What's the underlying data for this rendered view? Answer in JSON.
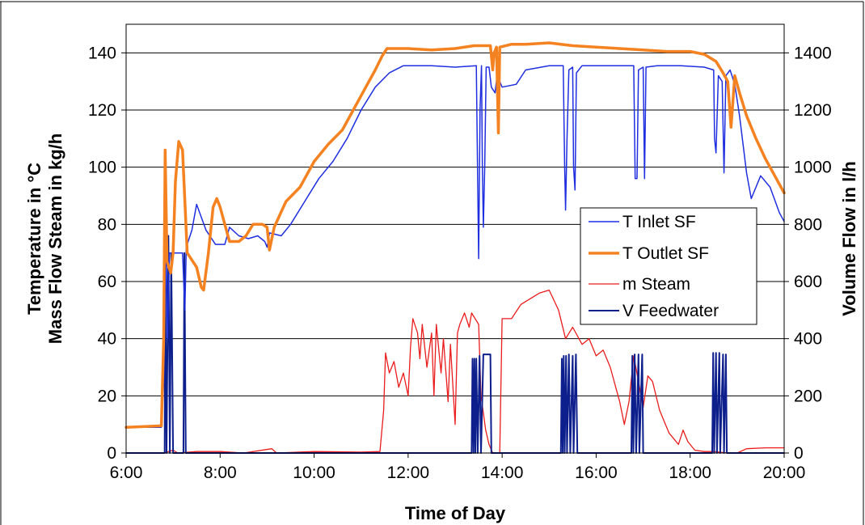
{
  "chart_data": {
    "type": "line",
    "xlabel": "Time of Day",
    "ylabel_left_line1": "Temperature in °C",
    "ylabel_left_line2": "Mass Flow Steam in kg/h",
    "ylabel_right": "Volume Flow in l/h",
    "x_unit": "hours",
    "xlim": [
      6,
      20
    ],
    "x_ticks": [
      6,
      8,
      10,
      12,
      14,
      16,
      18,
      20
    ],
    "x_tick_labels": [
      "6:00",
      "8:00",
      "10:00",
      "12:00",
      "14:00",
      "16:00",
      "18:00",
      "20:00"
    ],
    "ylim_left": [
      0,
      150
    ],
    "y_ticks_left": [
      0,
      20,
      40,
      60,
      80,
      100,
      120,
      140
    ],
    "y_tick_labels_left": [
      "0",
      "20",
      "40",
      "60",
      "80",
      "100",
      "120",
      "140"
    ],
    "ylim_right": [
      0,
      1500
    ],
    "y_ticks_right": [
      0,
      200,
      400,
      600,
      800,
      1000,
      1200,
      1400
    ],
    "y_tick_labels_right": [
      "0",
      "200",
      "400",
      "600",
      "800",
      "1000",
      "1200",
      "1400"
    ],
    "grid": true,
    "legend_position": "right",
    "series": [
      {
        "name": "T Inlet SF",
        "axis": "left",
        "color": "#1f2fe0",
        "width": 1.5,
        "points": [
          [
            6.0,
            9
          ],
          [
            6.75,
            9
          ],
          [
            6.8,
            25
          ],
          [
            6.85,
            72
          ],
          [
            6.88,
            40
          ],
          [
            6.92,
            70
          ],
          [
            7.2,
            70
          ],
          [
            7.25,
            50
          ],
          [
            7.28,
            72
          ],
          [
            7.4,
            78
          ],
          [
            7.5,
            87
          ],
          [
            7.7,
            78
          ],
          [
            7.9,
            73
          ],
          [
            8.1,
            73
          ],
          [
            8.2,
            79
          ],
          [
            8.4,
            76
          ],
          [
            8.6,
            75
          ],
          [
            8.8,
            76
          ],
          [
            8.95,
            74
          ],
          [
            9.0,
            72
          ],
          [
            9.05,
            77
          ],
          [
            9.3,
            76
          ],
          [
            9.5,
            80
          ],
          [
            9.8,
            88
          ],
          [
            10.1,
            96
          ],
          [
            10.4,
            102
          ],
          [
            10.7,
            110
          ],
          [
            11.0,
            120
          ],
          [
            11.3,
            128
          ],
          [
            11.6,
            133
          ],
          [
            11.9,
            135.5
          ],
          [
            12.5,
            135.5
          ],
          [
            13.0,
            135
          ],
          [
            13.45,
            135.5
          ],
          [
            13.48,
            95
          ],
          [
            13.5,
            68
          ],
          [
            13.53,
            120
          ],
          [
            13.56,
            135.5
          ],
          [
            13.58,
            100
          ],
          [
            13.6,
            79
          ],
          [
            13.63,
            100
          ],
          [
            13.66,
            135
          ],
          [
            13.72,
            135
          ],
          [
            13.77,
            128
          ],
          [
            13.85,
            126
          ],
          [
            13.9,
            133
          ],
          [
            13.95,
            130
          ],
          [
            14.0,
            128
          ],
          [
            14.3,
            129
          ],
          [
            14.5,
            134
          ],
          [
            15.0,
            135.5
          ],
          [
            15.3,
            135.5
          ],
          [
            15.33,
            100
          ],
          [
            15.35,
            85
          ],
          [
            15.38,
            110
          ],
          [
            15.42,
            134
          ],
          [
            15.5,
            135
          ],
          [
            15.52,
            100
          ],
          [
            15.55,
            92
          ],
          [
            15.58,
            133
          ],
          [
            15.7,
            135.5
          ],
          [
            16.0,
            135.5
          ],
          [
            16.5,
            135.5
          ],
          [
            16.8,
            135.5
          ],
          [
            16.83,
            96
          ],
          [
            16.87,
            96
          ],
          [
            16.9,
            134
          ],
          [
            17.0,
            135
          ],
          [
            17.03,
            96
          ],
          [
            17.06,
            135
          ],
          [
            17.3,
            135.5
          ],
          [
            17.8,
            135.5
          ],
          [
            18.3,
            135
          ],
          [
            18.5,
            134
          ],
          [
            18.52,
            110
          ],
          [
            18.55,
            105
          ],
          [
            18.6,
            132
          ],
          [
            18.68,
            130
          ],
          [
            18.72,
            98
          ],
          [
            18.76,
            132
          ],
          [
            18.85,
            134
          ],
          [
            18.95,
            129
          ],
          [
            19.05,
            118
          ],
          [
            19.2,
            98
          ],
          [
            19.3,
            89
          ],
          [
            19.5,
            97
          ],
          [
            19.7,
            93
          ],
          [
            19.9,
            84
          ],
          [
            20.0,
            81
          ]
        ]
      },
      {
        "name": "T Outlet SF",
        "axis": "left",
        "color": "#f58220",
        "width": 3.5,
        "points": [
          [
            6.0,
            9
          ],
          [
            6.75,
            9.5
          ],
          [
            6.8,
            40
          ],
          [
            6.83,
            106
          ],
          [
            6.87,
            67
          ],
          [
            6.95,
            63
          ],
          [
            7.0,
            70
          ],
          [
            7.05,
            95
          ],
          [
            7.12,
            109
          ],
          [
            7.2,
            106
          ],
          [
            7.3,
            70
          ],
          [
            7.42,
            67
          ],
          [
            7.5,
            65
          ],
          [
            7.6,
            58
          ],
          [
            7.65,
            57
          ],
          [
            7.75,
            70
          ],
          [
            7.85,
            86
          ],
          [
            7.93,
            89
          ],
          [
            8.0,
            86
          ],
          [
            8.1,
            80
          ],
          [
            8.2,
            74
          ],
          [
            8.4,
            74
          ],
          [
            8.55,
            76
          ],
          [
            8.7,
            80
          ],
          [
            8.9,
            80
          ],
          [
            9.0,
            79
          ],
          [
            9.05,
            71
          ],
          [
            9.15,
            79
          ],
          [
            9.4,
            88
          ],
          [
            9.7,
            93
          ],
          [
            10.0,
            102
          ],
          [
            10.3,
            108
          ],
          [
            10.6,
            113
          ],
          [
            10.9,
            122
          ],
          [
            11.1,
            128
          ],
          [
            11.3,
            134
          ],
          [
            11.45,
            139
          ],
          [
            11.55,
            141.5
          ],
          [
            12.0,
            141.5
          ],
          [
            12.5,
            141
          ],
          [
            13.0,
            141.5
          ],
          [
            13.4,
            142.5
          ],
          [
            13.75,
            142.5
          ],
          [
            13.8,
            134
          ],
          [
            13.83,
            140
          ],
          [
            13.88,
            142
          ],
          [
            13.92,
            112
          ],
          [
            13.95,
            142
          ],
          [
            14.2,
            143
          ],
          [
            14.5,
            143
          ],
          [
            15.0,
            143.5
          ],
          [
            15.5,
            142.5
          ],
          [
            16.0,
            142
          ],
          [
            16.5,
            141.5
          ],
          [
            17.0,
            141
          ],
          [
            17.5,
            140.5
          ],
          [
            18.0,
            140.5
          ],
          [
            18.3,
            139.5
          ],
          [
            18.55,
            137
          ],
          [
            18.7,
            133
          ],
          [
            18.8,
            130
          ],
          [
            18.87,
            114
          ],
          [
            18.95,
            132
          ],
          [
            19.05,
            126
          ],
          [
            19.2,
            118
          ],
          [
            19.4,
            110
          ],
          [
            19.6,
            103
          ],
          [
            19.8,
            97
          ],
          [
            20.0,
            91
          ]
        ]
      },
      {
        "name": "m Steam",
        "axis": "left",
        "color": "#ea1c1c",
        "width": 1.3,
        "points": [
          [
            6.0,
            0
          ],
          [
            6.8,
            0
          ],
          [
            7.0,
            1
          ],
          [
            7.1,
            0
          ],
          [
            7.5,
            0.5
          ],
          [
            8.0,
            0.5
          ],
          [
            8.5,
            0
          ],
          [
            9.1,
            1.5
          ],
          [
            9.2,
            0
          ],
          [
            10.0,
            0.5
          ],
          [
            11.0,
            0.3
          ],
          [
            11.4,
            0.5
          ],
          [
            11.48,
            15
          ],
          [
            11.52,
            35
          ],
          [
            11.6,
            28
          ],
          [
            11.7,
            32
          ],
          [
            11.8,
            23
          ],
          [
            11.9,
            28
          ],
          [
            12.0,
            20
          ],
          [
            12.05,
            37
          ],
          [
            12.1,
            47
          ],
          [
            12.2,
            42
          ],
          [
            12.25,
            33
          ],
          [
            12.3,
            45
          ],
          [
            12.4,
            30
          ],
          [
            12.5,
            42
          ],
          [
            12.55,
            20
          ],
          [
            12.6,
            45
          ],
          [
            12.7,
            28
          ],
          [
            12.75,
            40
          ],
          [
            12.85,
            18
          ],
          [
            12.9,
            38
          ],
          [
            13.0,
            10
          ],
          [
            13.05,
            42
          ],
          [
            13.1,
            45
          ],
          [
            13.2,
            49
          ],
          [
            13.3,
            44
          ],
          [
            13.35,
            49
          ],
          [
            13.5,
            45
          ],
          [
            13.55,
            20
          ],
          [
            13.65,
            8
          ],
          [
            13.72,
            3
          ],
          [
            13.8,
            0
          ],
          [
            13.95,
            0
          ],
          [
            14.0,
            47
          ],
          [
            14.2,
            47
          ],
          [
            14.4,
            52
          ],
          [
            14.6,
            54
          ],
          [
            14.8,
            56
          ],
          [
            15.0,
            57
          ],
          [
            15.2,
            50
          ],
          [
            15.35,
            40
          ],
          [
            15.5,
            44
          ],
          [
            15.7,
            38
          ],
          [
            15.85,
            40
          ],
          [
            16.0,
            34
          ],
          [
            16.15,
            36
          ],
          [
            16.3,
            30
          ],
          [
            16.5,
            18
          ],
          [
            16.6,
            10
          ],
          [
            16.7,
            18
          ],
          [
            16.8,
            34
          ],
          [
            16.9,
            25
          ],
          [
            17.0,
            16
          ],
          [
            17.1,
            27
          ],
          [
            17.2,
            25
          ],
          [
            17.35,
            15
          ],
          [
            17.45,
            11
          ],
          [
            17.55,
            7
          ],
          [
            17.65,
            5
          ],
          [
            17.75,
            3
          ],
          [
            17.85,
            8
          ],
          [
            17.95,
            4
          ],
          [
            18.1,
            1
          ],
          [
            18.3,
            0.5
          ],
          [
            18.5,
            0.5
          ],
          [
            18.8,
            0
          ],
          [
            19.0,
            0
          ],
          [
            19.2,
            1.5
          ],
          [
            19.6,
            1.8
          ],
          [
            20.0,
            1.8
          ]
        ]
      },
      {
        "name": "V Feedwater",
        "axis": "right",
        "color": "#0d1f8c",
        "width": 2,
        "points": [
          [
            6.0,
            0
          ],
          [
            6.82,
            0
          ],
          [
            6.83,
            680
          ],
          [
            6.86,
            0
          ],
          [
            6.9,
            760
          ],
          [
            6.93,
            0
          ],
          [
            6.96,
            700
          ],
          [
            7.0,
            0
          ],
          [
            7.22,
            0
          ],
          [
            7.24,
            700
          ],
          [
            7.27,
            0
          ],
          [
            13.35,
            0
          ],
          [
            13.37,
            330
          ],
          [
            13.39,
            0
          ],
          [
            13.41,
            330
          ],
          [
            13.43,
            0
          ],
          [
            13.45,
            330
          ],
          [
            13.48,
            0
          ],
          [
            13.52,
            340
          ],
          [
            13.55,
            0
          ],
          [
            13.6,
            345
          ],
          [
            13.75,
            345
          ],
          [
            13.77,
            0
          ],
          [
            15.25,
            0
          ],
          [
            15.27,
            330
          ],
          [
            15.29,
            0
          ],
          [
            15.31,
            340
          ],
          [
            15.33,
            0
          ],
          [
            15.36,
            340
          ],
          [
            15.38,
            0
          ],
          [
            15.42,
            345
          ],
          [
            15.45,
            0
          ],
          [
            15.5,
            340
          ],
          [
            15.52,
            0
          ],
          [
            15.57,
            345
          ],
          [
            15.6,
            0
          ],
          [
            16.75,
            0
          ],
          [
            16.77,
            340
          ],
          [
            16.79,
            0
          ],
          [
            16.82,
            345
          ],
          [
            16.85,
            0
          ],
          [
            16.9,
            345
          ],
          [
            16.92,
            0
          ],
          [
            16.98,
            345
          ],
          [
            17.0,
            0
          ],
          [
            18.47,
            0
          ],
          [
            18.49,
            350
          ],
          [
            18.51,
            0
          ],
          [
            18.55,
            350
          ],
          [
            18.57,
            0
          ],
          [
            18.62,
            350
          ],
          [
            18.64,
            0
          ],
          [
            18.7,
            345
          ],
          [
            18.72,
            0
          ],
          [
            18.76,
            345
          ],
          [
            18.78,
            0
          ],
          [
            20.0,
            0
          ]
        ]
      }
    ]
  }
}
